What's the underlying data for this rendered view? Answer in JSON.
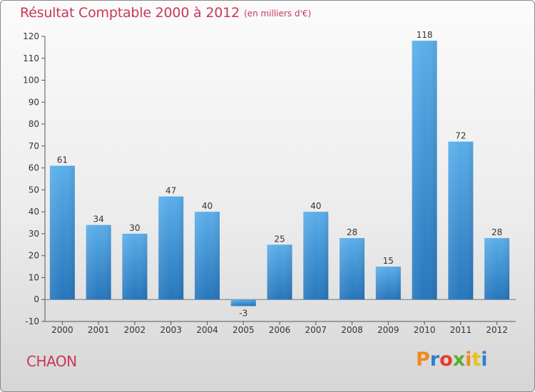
{
  "header": {
    "title": "Résultat Comptable 2000 à 2012",
    "subtitle": "(en milliers d'€)"
  },
  "footer": {
    "commune": "CHAON",
    "logo_text": "Proxiti",
    "logo_colors": [
      "#f08a1c",
      "#2f7fd1",
      "#e63b2e",
      "#56b131",
      "#f08a1c",
      "#e8c21a",
      "#2f7fd1"
    ]
  },
  "chart_data": {
    "type": "bar",
    "title": "Résultat Comptable 2000 à 2012",
    "subtitle": "(en milliers d'€)",
    "categories": [
      "2000",
      "2001",
      "2002",
      "2003",
      "2004",
      "2005",
      "2006",
      "2007",
      "2008",
      "2009",
      "2010",
      "2011",
      "2012"
    ],
    "values": [
      61,
      34,
      30,
      47,
      40,
      -3,
      25,
      40,
      28,
      15,
      118,
      72,
      28
    ],
    "ylim": [
      -10,
      120
    ],
    "yticks": [
      -10,
      0,
      10,
      20,
      30,
      40,
      50,
      60,
      70,
      80,
      90,
      100,
      110,
      120
    ],
    "grid": false,
    "bar_color": "#4a9ee0",
    "bar_color_dark": "#2a78be"
  }
}
